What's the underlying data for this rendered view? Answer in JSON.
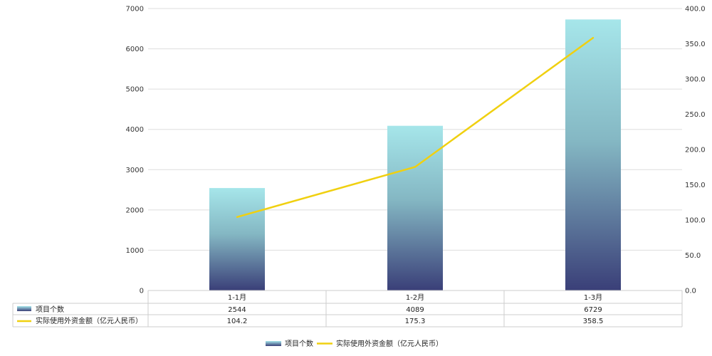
{
  "colors": {
    "bar_top": "#a6e6ea",
    "bar_bottom": "#3a3f78",
    "line": "#f0d010",
    "grid": "#dddddd",
    "table_border": "#cccccc"
  },
  "chart_data": {
    "type": "bar+line",
    "categories": [
      "1-1月",
      "1-2月",
      "1-3月"
    ],
    "series": [
      {
        "name": "项目个数",
        "type": "bar",
        "axis": "left",
        "values": [
          2544,
          4089,
          6729
        ],
        "labels": [
          "2544",
          "4089",
          "6729"
        ]
      },
      {
        "name": "实际使用外资金额（亿元人民币）",
        "type": "line",
        "axis": "right",
        "values": [
          104.2,
          175.3,
          358.5
        ],
        "labels": [
          "104.2",
          "175.3",
          "358.5"
        ]
      }
    ],
    "y_left": {
      "min": 0,
      "max": 7000,
      "ticks": [
        "0",
        "1000",
        "2000",
        "3000",
        "4000",
        "5000",
        "6000",
        "7000"
      ]
    },
    "y_right": {
      "min": 0,
      "max": 400,
      "ticks": [
        "0.0",
        "50.0",
        "100.0",
        "150.0",
        "200.0",
        "250.0",
        "300.0",
        "350.0",
        "400.0"
      ]
    },
    "grid": true,
    "data_table": true,
    "legend": {
      "position": "bottom",
      "items": [
        "项目个数",
        "实际使用外资金额（亿元人民币）"
      ]
    }
  }
}
